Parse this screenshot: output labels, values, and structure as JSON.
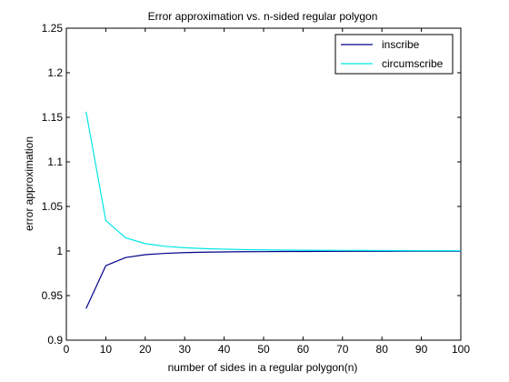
{
  "chart_data": {
    "type": "line",
    "title": "Error approximation vs. n-sided regular polygon",
    "xlabel": "number of sides in a regular polygon(n)",
    "ylabel": "error approximation",
    "xlim": [
      0,
      100
    ],
    "ylim": [
      0.9,
      1.25
    ],
    "xticks": [
      0,
      10,
      20,
      30,
      40,
      50,
      60,
      70,
      80,
      90,
      100
    ],
    "yticks": [
      0.9,
      0.95,
      1,
      1.05,
      1.1,
      1.15,
      1.2,
      1.25
    ],
    "xtick_labels": [
      "0",
      "10",
      "20",
      "30",
      "40",
      "50",
      "60",
      "70",
      "80",
      "90",
      "100"
    ],
    "ytick_labels": [
      "0.9",
      "0.95",
      "1",
      "1.05",
      "1.1",
      "1.15",
      "1.2",
      "1.25"
    ],
    "grid": false,
    "legend_position": "top-right",
    "x": [
      5,
      10,
      15,
      20,
      25,
      30,
      35,
      40,
      45,
      50,
      55,
      60,
      65,
      70,
      75,
      80,
      85,
      90,
      95,
      100
    ],
    "series": [
      {
        "name": "inscribe",
        "color": "#00008b",
        "values": [
          0.9355,
          0.9836,
          0.9927,
          0.9959,
          0.9974,
          0.9982,
          0.9987,
          0.999,
          0.9992,
          0.9993,
          0.9995,
          0.9995,
          0.9996,
          0.9997,
          0.9997,
          0.9997,
          0.9998,
          0.9998,
          0.9998,
          0.9998
        ]
      },
      {
        "name": "circumscribe",
        "color": "#00e5e5",
        "values": [
          1.1563,
          1.0342,
          1.0149,
          1.0083,
          1.0053,
          1.0037,
          1.0027,
          1.0021,
          1.0016,
          1.0013,
          1.0011,
          1.0009,
          1.0008,
          1.0007,
          1.0006,
          1.0005,
          1.0005,
          1.0004,
          1.0004,
          1.0003
        ]
      }
    ]
  }
}
